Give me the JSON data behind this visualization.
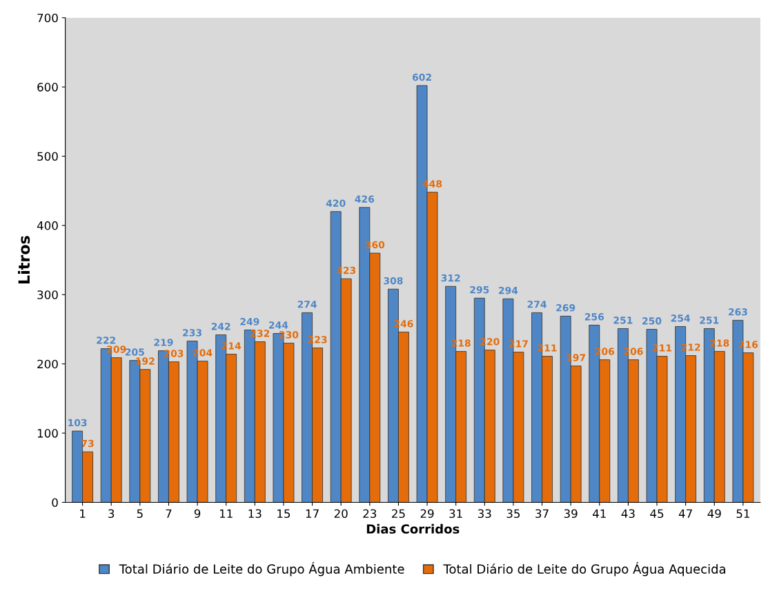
{
  "chart_data": {
    "type": "bar",
    "xlabel": "Dias Corridos",
    "ylabel": "Litros",
    "categories": [
      "1",
      "3",
      "5",
      "7",
      "9",
      "11",
      "13",
      "15",
      "17",
      "20",
      "23",
      "25",
      "29",
      "31",
      "33",
      "35",
      "37",
      "39",
      "41",
      "43",
      "45",
      "47",
      "49",
      "51"
    ],
    "series": [
      {
        "name": "Total Diário de Leite do Grupo Água Ambiente",
        "color": "#4f86c6",
        "values": [
          103,
          222,
          205,
          219,
          233,
          242,
          249,
          244,
          274,
          420,
          426,
          308,
          602,
          312,
          295,
          294,
          274,
          269,
          256,
          251,
          250,
          254,
          251,
          263
        ]
      },
      {
        "name": "Total Diário de Leite do Grupo Água Aquecida",
        "color": "#e46c0a",
        "values": [
          73,
          209,
          192,
          203,
          204,
          214,
          232,
          230,
          223,
          323,
          360,
          246,
          448,
          218,
          220,
          217,
          211,
          197,
          206,
          206,
          211,
          212,
          218,
          216
        ]
      }
    ],
    "ylim": [
      0,
      700
    ],
    "yticks": [
      0,
      100,
      200,
      300,
      400,
      500,
      600,
      700
    ],
    "data_labels": true,
    "grid": false,
    "legend": "bottom"
  }
}
